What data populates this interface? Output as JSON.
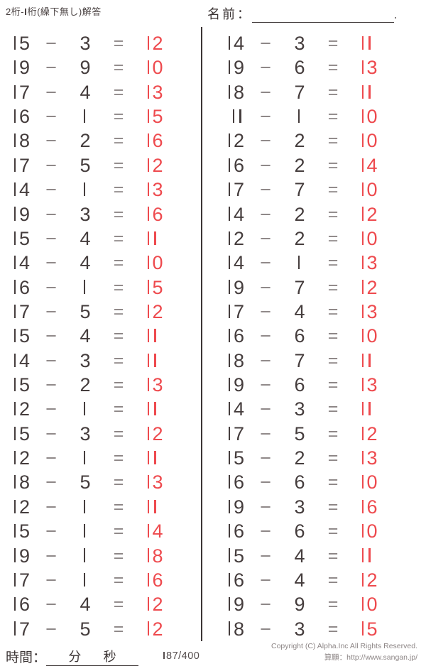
{
  "header": {
    "title": "2桁-1桁(繰下無し)解答",
    "name_label": "名前：",
    "name_line_end": "."
  },
  "operators": {
    "minus": "−",
    "equals": "="
  },
  "columns": [
    {
      "side": "left",
      "problems": [
        {
          "minuend": 15,
          "subtrahend": 3,
          "answer": 12
        },
        {
          "minuend": 19,
          "subtrahend": 9,
          "answer": 10
        },
        {
          "minuend": 17,
          "subtrahend": 4,
          "answer": 13
        },
        {
          "minuend": 16,
          "subtrahend": 1,
          "answer": 15
        },
        {
          "minuend": 18,
          "subtrahend": 2,
          "answer": 16
        },
        {
          "minuend": 17,
          "subtrahend": 5,
          "answer": 12
        },
        {
          "minuend": 14,
          "subtrahend": 1,
          "answer": 13
        },
        {
          "minuend": 19,
          "subtrahend": 3,
          "answer": 16
        },
        {
          "minuend": 15,
          "subtrahend": 4,
          "answer": 11
        },
        {
          "minuend": 14,
          "subtrahend": 4,
          "answer": 10
        },
        {
          "minuend": 16,
          "subtrahend": 1,
          "answer": 15
        },
        {
          "minuend": 17,
          "subtrahend": 5,
          "answer": 12
        },
        {
          "minuend": 15,
          "subtrahend": 4,
          "answer": 11
        },
        {
          "minuend": 14,
          "subtrahend": 3,
          "answer": 11
        },
        {
          "minuend": 15,
          "subtrahend": 2,
          "answer": 13
        },
        {
          "minuend": 12,
          "subtrahend": 1,
          "answer": 11
        },
        {
          "minuend": 15,
          "subtrahend": 3,
          "answer": 12
        },
        {
          "minuend": 12,
          "subtrahend": 1,
          "answer": 11
        },
        {
          "minuend": 18,
          "subtrahend": 5,
          "answer": 13
        },
        {
          "minuend": 12,
          "subtrahend": 1,
          "answer": 11
        },
        {
          "minuend": 15,
          "subtrahend": 1,
          "answer": 14
        },
        {
          "minuend": 19,
          "subtrahend": 1,
          "answer": 18
        },
        {
          "minuend": 17,
          "subtrahend": 1,
          "answer": 16
        },
        {
          "minuend": 16,
          "subtrahend": 4,
          "answer": 12
        },
        {
          "minuend": 17,
          "subtrahend": 5,
          "answer": 12
        }
      ]
    },
    {
      "side": "right",
      "problems": [
        {
          "minuend": 14,
          "subtrahend": 3,
          "answer": 11
        },
        {
          "minuend": 19,
          "subtrahend": 6,
          "answer": 13
        },
        {
          "minuend": 18,
          "subtrahend": 7,
          "answer": 11
        },
        {
          "minuend": 11,
          "subtrahend": 1,
          "answer": 10
        },
        {
          "minuend": 12,
          "subtrahend": 2,
          "answer": 10
        },
        {
          "minuend": 16,
          "subtrahend": 2,
          "answer": 14
        },
        {
          "minuend": 17,
          "subtrahend": 7,
          "answer": 10
        },
        {
          "minuend": 14,
          "subtrahend": 2,
          "answer": 12
        },
        {
          "minuend": 12,
          "subtrahend": 2,
          "answer": 10
        },
        {
          "minuend": 14,
          "subtrahend": 1,
          "answer": 13
        },
        {
          "minuend": 19,
          "subtrahend": 7,
          "answer": 12
        },
        {
          "minuend": 17,
          "subtrahend": 4,
          "answer": 13
        },
        {
          "minuend": 16,
          "subtrahend": 6,
          "answer": 10
        },
        {
          "minuend": 18,
          "subtrahend": 7,
          "answer": 11
        },
        {
          "minuend": 19,
          "subtrahend": 6,
          "answer": 13
        },
        {
          "minuend": 14,
          "subtrahend": 3,
          "answer": 11
        },
        {
          "minuend": 17,
          "subtrahend": 5,
          "answer": 12
        },
        {
          "minuend": 15,
          "subtrahend": 2,
          "answer": 13
        },
        {
          "minuend": 16,
          "subtrahend": 6,
          "answer": 10
        },
        {
          "minuend": 19,
          "subtrahend": 3,
          "answer": 16
        },
        {
          "minuend": 16,
          "subtrahend": 6,
          "answer": 10
        },
        {
          "minuend": 15,
          "subtrahend": 4,
          "answer": 11
        },
        {
          "minuend": 16,
          "subtrahend": 4,
          "answer": 12
        },
        {
          "minuend": 19,
          "subtrahend": 9,
          "answer": 10
        },
        {
          "minuend": 18,
          "subtrahend": 3,
          "answer": 15
        }
      ]
    }
  ],
  "footer": {
    "time_label": "時間：",
    "minutes_label": "分",
    "seconds_label": "秒",
    "page_indicator": "187/400",
    "copyright_line1": "Copyright (C) Alpha.Inc All Rights Reserved.",
    "copyright_line2": "算願：http://www.sangan.jp/"
  },
  "colors": {
    "answer_red": "#ee4a4e",
    "text_dark": "#453d3d",
    "operator_gray": "#8b8484"
  }
}
